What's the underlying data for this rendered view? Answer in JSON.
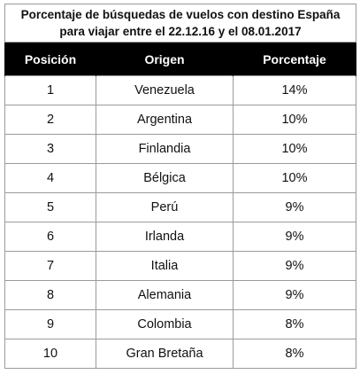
{
  "table": {
    "title_line1": "Porcentaje de búsquedas de vuelos con destino España",
    "title_line2": "para viajar entre el 22.12.16 y el 08.01.2017",
    "columns": [
      "Posición",
      "Origen",
      "Porcentaje"
    ],
    "rows": [
      {
        "pos": "1",
        "origin": "Venezuela",
        "pct": "14%"
      },
      {
        "pos": "2",
        "origin": "Argentina",
        "pct": "10%"
      },
      {
        "pos": "3",
        "origin": "Finlandia",
        "pct": "10%"
      },
      {
        "pos": "4",
        "origin": "Bélgica",
        "pct": "10%"
      },
      {
        "pos": "5",
        "origin": "Perú",
        "pct": "9%"
      },
      {
        "pos": "6",
        "origin": "Irlanda",
        "pct": "9%"
      },
      {
        "pos": "7",
        "origin": "Italia",
        "pct": "9%"
      },
      {
        "pos": "8",
        "origin": "Alemania",
        "pct": "9%"
      },
      {
        "pos": "9",
        "origin": "Colombia",
        "pct": "8%"
      },
      {
        "pos": "10",
        "origin": "Gran Bretaña",
        "pct": "8%"
      }
    ]
  }
}
